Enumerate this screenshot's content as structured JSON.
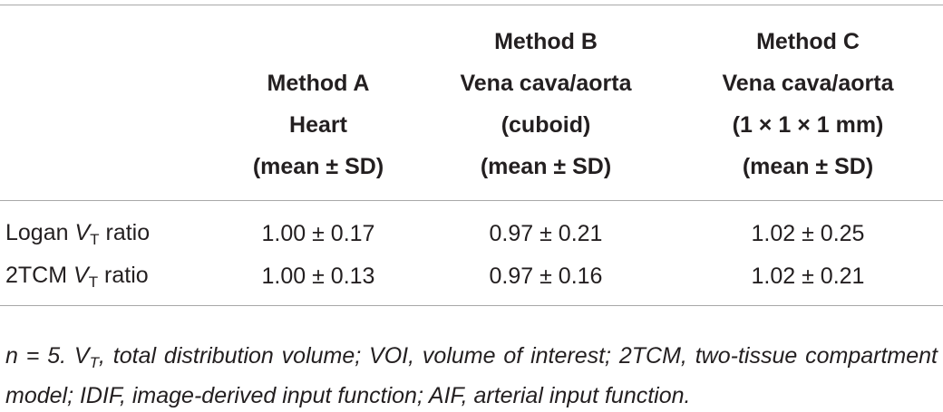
{
  "table": {
    "headers": [
      {
        "lines": []
      },
      {
        "lines": [
          "Method A",
          "Heart",
          "(mean ± SD)"
        ]
      },
      {
        "lines": [
          "Method B",
          "Vena cava/aorta",
          "(cuboid)",
          "(mean ± SD)"
        ]
      },
      {
        "lines": [
          "Method C",
          "Vena cava/aorta",
          "(1 × 1 × 1 mm)",
          "(mean ± SD)"
        ]
      }
    ],
    "rows": [
      {
        "label_prefix": "Logan ",
        "label_symbol": "V",
        "label_subscript": "T",
        "label_suffix": " ratio",
        "values": [
          "1.00 ± 0.17",
          "0.97 ± 0.21",
          "1.02 ± 0.25"
        ]
      },
      {
        "label_prefix": "2TCM ",
        "label_symbol": "V",
        "label_subscript": "T",
        "label_suffix": " ratio",
        "values": [
          "1.00 ± 0.13",
          "0.97 ± 0.16",
          "1.02 ± 0.21"
        ]
      }
    ]
  },
  "footnote": {
    "part1": "n = 5. V",
    "subscript": "T",
    "part2": ", total distribution volume; VOI, volume of interest; 2TCM, two-tissue compartment model; IDIF, image-derived input function; AIF, arterial input function."
  }
}
